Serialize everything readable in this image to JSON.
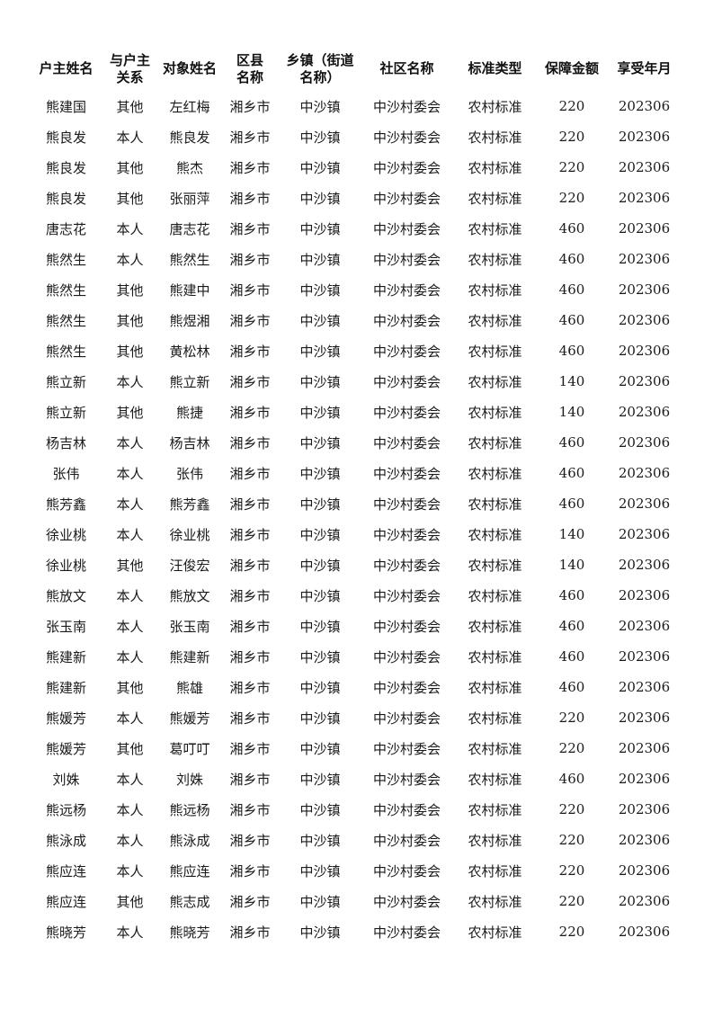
{
  "page": {
    "background_color": "#ffffff",
    "text_color": "#1a1a1a"
  },
  "table": {
    "columns": [
      {
        "key": "household-head-name",
        "label": "户主姓名"
      },
      {
        "key": "relation-to-head",
        "label": "与户主\n关系"
      },
      {
        "key": "member-name",
        "label": "对象姓名"
      },
      {
        "key": "county-name",
        "label": "区县\n名称"
      },
      {
        "key": "township-name",
        "label": "乡镇（街道\n名称）"
      },
      {
        "key": "community-name",
        "label": "社区名称"
      },
      {
        "key": "standard-type",
        "label": "标准类型"
      },
      {
        "key": "guarantee-amount",
        "label": "保障金额"
      },
      {
        "key": "benefit-period",
        "label": "享受年月"
      }
    ],
    "rows": [
      [
        "熊建国",
        "其他",
        "左红梅",
        "湘乡市",
        "中沙镇",
        "中沙村委会",
        "农村标准",
        "220",
        "202306"
      ],
      [
        "熊良发",
        "本人",
        "熊良发",
        "湘乡市",
        "中沙镇",
        "中沙村委会",
        "农村标准",
        "220",
        "202306"
      ],
      [
        "熊良发",
        "其他",
        "熊杰",
        "湘乡市",
        "中沙镇",
        "中沙村委会",
        "农村标准",
        "220",
        "202306"
      ],
      [
        "熊良发",
        "其他",
        "张丽萍",
        "湘乡市",
        "中沙镇",
        "中沙村委会",
        "农村标准",
        "220",
        "202306"
      ],
      [
        "唐志花",
        "本人",
        "唐志花",
        "湘乡市",
        "中沙镇",
        "中沙村委会",
        "农村标准",
        "460",
        "202306"
      ],
      [
        "熊然生",
        "本人",
        "熊然生",
        "湘乡市",
        "中沙镇",
        "中沙村委会",
        "农村标准",
        "460",
        "202306"
      ],
      [
        "熊然生",
        "其他",
        "熊建中",
        "湘乡市",
        "中沙镇",
        "中沙村委会",
        "农村标准",
        "460",
        "202306"
      ],
      [
        "熊然生",
        "其他",
        "熊煜湘",
        "湘乡市",
        "中沙镇",
        "中沙村委会",
        "农村标准",
        "460",
        "202306"
      ],
      [
        "熊然生",
        "其他",
        "黄松林",
        "湘乡市",
        "中沙镇",
        "中沙村委会",
        "农村标准",
        "460",
        "202306"
      ],
      [
        "熊立新",
        "本人",
        "熊立新",
        "湘乡市",
        "中沙镇",
        "中沙村委会",
        "农村标准",
        "140",
        "202306"
      ],
      [
        "熊立新",
        "其他",
        "熊捷",
        "湘乡市",
        "中沙镇",
        "中沙村委会",
        "农村标准",
        "140",
        "202306"
      ],
      [
        "杨吉林",
        "本人",
        "杨吉林",
        "湘乡市",
        "中沙镇",
        "中沙村委会",
        "农村标准",
        "460",
        "202306"
      ],
      [
        "张伟",
        "本人",
        "张伟",
        "湘乡市",
        "中沙镇",
        "中沙村委会",
        "农村标准",
        "460",
        "202306"
      ],
      [
        "熊芳鑫",
        "本人",
        "熊芳鑫",
        "湘乡市",
        "中沙镇",
        "中沙村委会",
        "农村标准",
        "460",
        "202306"
      ],
      [
        "徐业桃",
        "本人",
        "徐业桃",
        "湘乡市",
        "中沙镇",
        "中沙村委会",
        "农村标准",
        "140",
        "202306"
      ],
      [
        "徐业桃",
        "其他",
        "汪俊宏",
        "湘乡市",
        "中沙镇",
        "中沙村委会",
        "农村标准",
        "140",
        "202306"
      ],
      [
        "熊放文",
        "本人",
        "熊放文",
        "湘乡市",
        "中沙镇",
        "中沙村委会",
        "农村标准",
        "460",
        "202306"
      ],
      [
        "张玉南",
        "本人",
        "张玉南",
        "湘乡市",
        "中沙镇",
        "中沙村委会",
        "农村标准",
        "460",
        "202306"
      ],
      [
        "熊建新",
        "本人",
        "熊建新",
        "湘乡市",
        "中沙镇",
        "中沙村委会",
        "农村标准",
        "460",
        "202306"
      ],
      [
        "熊建新",
        "其他",
        "熊雄",
        "湘乡市",
        "中沙镇",
        "中沙村委会",
        "农村标准",
        "460",
        "202306"
      ],
      [
        "熊媛芳",
        "本人",
        "熊媛芳",
        "湘乡市",
        "中沙镇",
        "中沙村委会",
        "农村标准",
        "220",
        "202306"
      ],
      [
        "熊媛芳",
        "其他",
        "葛叮叮",
        "湘乡市",
        "中沙镇",
        "中沙村委会",
        "农村标准",
        "220",
        "202306"
      ],
      [
        "刘姝",
        "本人",
        "刘姝",
        "湘乡市",
        "中沙镇",
        "中沙村委会",
        "农村标准",
        "460",
        "202306"
      ],
      [
        "熊远杨",
        "本人",
        "熊远杨",
        "湘乡市",
        "中沙镇",
        "中沙村委会",
        "农村标准",
        "220",
        "202306"
      ],
      [
        "熊泳成",
        "本人",
        "熊泳成",
        "湘乡市",
        "中沙镇",
        "中沙村委会",
        "农村标准",
        "220",
        "202306"
      ],
      [
        "熊应连",
        "本人",
        "熊应连",
        "湘乡市",
        "中沙镇",
        "中沙村委会",
        "农村标准",
        "220",
        "202306"
      ],
      [
        "熊应连",
        "其他",
        "熊志成",
        "湘乡市",
        "中沙镇",
        "中沙村委会",
        "农村标准",
        "220",
        "202306"
      ],
      [
        "熊晓芳",
        "本人",
        "熊晓芳",
        "湘乡市",
        "中沙镇",
        "中沙村委会",
        "农村标准",
        "220",
        "202306"
      ]
    ]
  }
}
